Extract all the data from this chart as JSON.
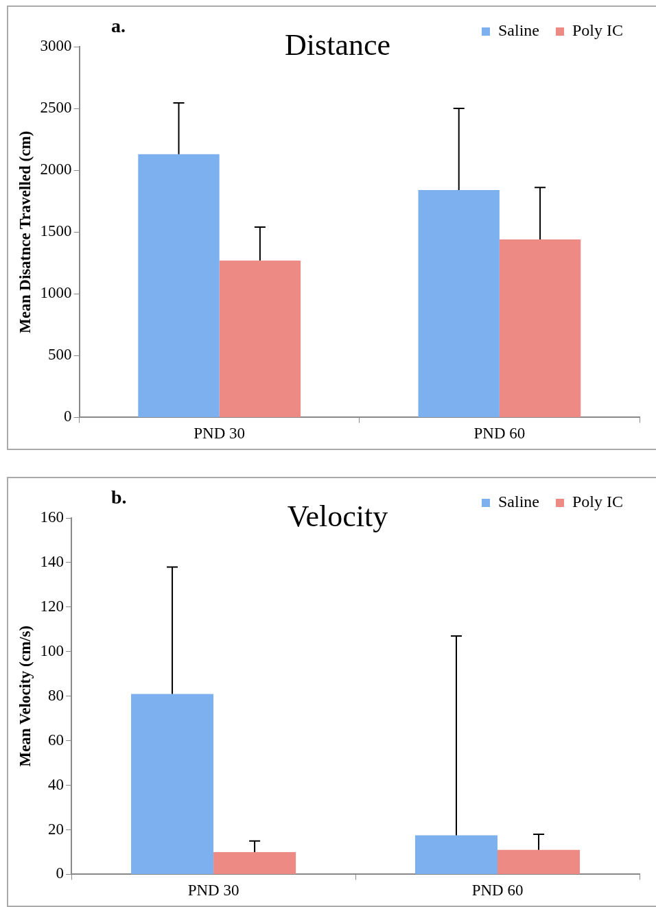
{
  "chart_data": [
    {
      "type": "bar",
      "title": "Distance",
      "ylabel": "Mean Disatnce Travelled (cm)",
      "annotations": [
        "a."
      ],
      "categories": [
        "PND 30",
        "PND 60"
      ],
      "legend": "top right",
      "ylim": [
        0,
        3000
      ],
      "yticks": [
        0,
        500,
        1000,
        1500,
        2000,
        2500,
        3000
      ],
      "series": [
        {
          "name": "Saline",
          "color": "#7db0ee",
          "values": [
            2130,
            1840
          ],
          "errors": [
            [
              2130,
              2545
            ],
            [
              1840,
              2500
            ]
          ]
        },
        {
          "name": "Poly IC",
          "color": "#ee8a84",
          "values": [
            1270,
            1440
          ],
          "errors": [
            [
              1270,
              1540
            ],
            [
              1440,
              1860
            ]
          ]
        }
      ]
    },
    {
      "type": "bar",
      "title": "Velocity",
      "ylabel": "Mean Velocity (cm/s)",
      "annotations": [
        "b."
      ],
      "categories": [
        "PND 30",
        "PND 60"
      ],
      "legend": "top right",
      "ylim": [
        0,
        160
      ],
      "yticks": [
        0,
        20,
        40,
        60,
        80,
        100,
        120,
        140,
        160
      ],
      "series": [
        {
          "name": "Saline",
          "color": "#7db0ee",
          "values": [
            81,
            17.5
          ],
          "errors": [
            [
              81,
              138
            ],
            [
              17.5,
              107
            ]
          ]
        },
        {
          "name": "Poly IC",
          "color": "#ee8a84",
          "values": [
            10,
            11
          ],
          "errors": [
            [
              10,
              15
            ],
            [
              11,
              18
            ]
          ]
        }
      ]
    }
  ]
}
